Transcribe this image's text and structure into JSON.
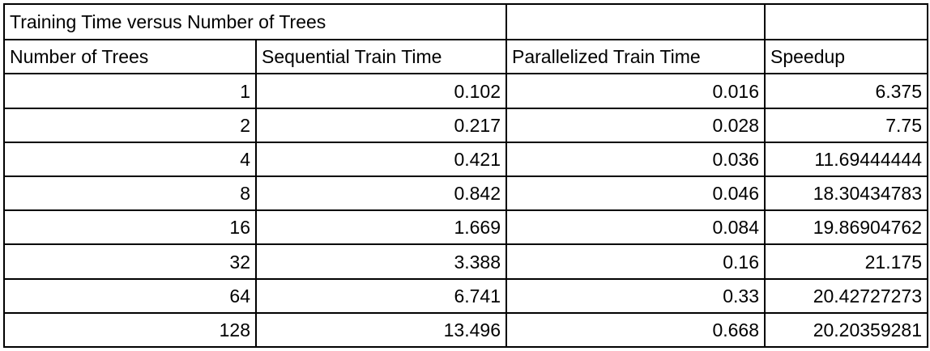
{
  "chart_data": {
    "type": "table",
    "title": "Training Time versus Number of Trees",
    "columns": [
      "Number of Trees",
      "Sequential Train Time",
      "Parallelized Train Time",
      "Speedup"
    ],
    "rows": [
      [
        "1",
        "0.102",
        "0.016",
        "6.375"
      ],
      [
        "2",
        "0.217",
        "0.028",
        "7.75"
      ],
      [
        "4",
        "0.421",
        "0.036",
        "11.69444444"
      ],
      [
        "8",
        "0.842",
        "0.046",
        "18.30434783"
      ],
      [
        "16",
        "1.669",
        "0.084",
        "19.86904762"
      ],
      [
        "32",
        "3.388",
        "0.16",
        "21.175"
      ],
      [
        "64",
        "6.741",
        "0.33",
        "20.42727273"
      ],
      [
        "128",
        "13.496",
        "0.668",
        "20.20359281"
      ]
    ]
  }
}
